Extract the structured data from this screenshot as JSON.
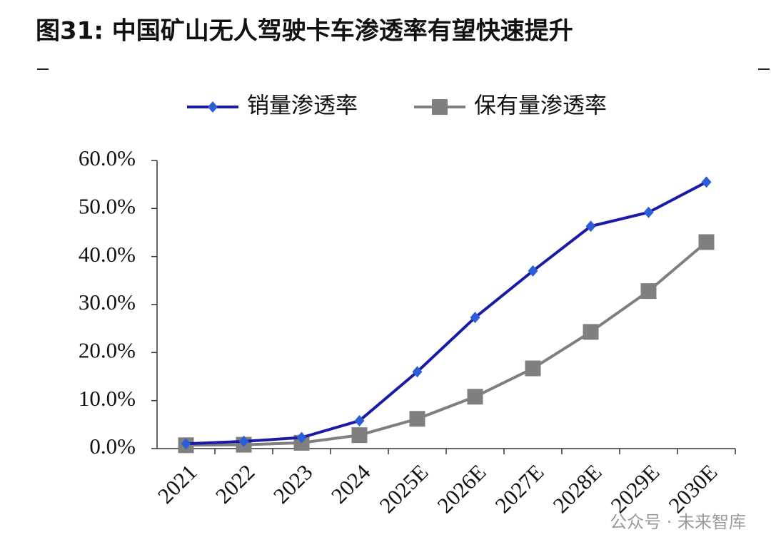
{
  "chart_data": {
    "type": "line",
    "title": "图31:  中国矿山无人驾驶卡车渗透率有望快速提升",
    "categories": [
      "2021",
      "2022",
      "2023",
      "2024",
      "2025E",
      "2026E",
      "2027E",
      "2028E",
      "2029E",
      "2030E"
    ],
    "series": [
      {
        "name": "销量渗透率",
        "color": "#1a1aa8",
        "marker": "diamond",
        "marker_color": "#2a5fd8",
        "values": [
          1.0,
          1.5,
          2.3,
          5.8,
          16.0,
          27.3,
          37.0,
          46.3,
          49.2,
          55.5
        ]
      },
      {
        "name": "保有量渗透率",
        "color": "#7f7f7f",
        "marker": "square",
        "marker_color": "#7f7f7f",
        "values": [
          0.7,
          0.8,
          1.2,
          2.8,
          6.2,
          10.8,
          16.7,
          24.3,
          32.8,
          43.0
        ]
      }
    ],
    "ylim": [
      0,
      60
    ],
    "yticks": [
      {
        "value": 0,
        "label": "0.0%"
      },
      {
        "value": 10,
        "label": "10.0%"
      },
      {
        "value": 20,
        "label": "20.0%"
      },
      {
        "value": 30,
        "label": "30.0%"
      },
      {
        "value": 40,
        "label": "40.0%"
      },
      {
        "value": 50,
        "label": "50.0%"
      },
      {
        "value": 60,
        "label": "60.0%"
      }
    ],
    "grid": false,
    "legend": "top",
    "watermark": "公众号 · 未来智库"
  }
}
